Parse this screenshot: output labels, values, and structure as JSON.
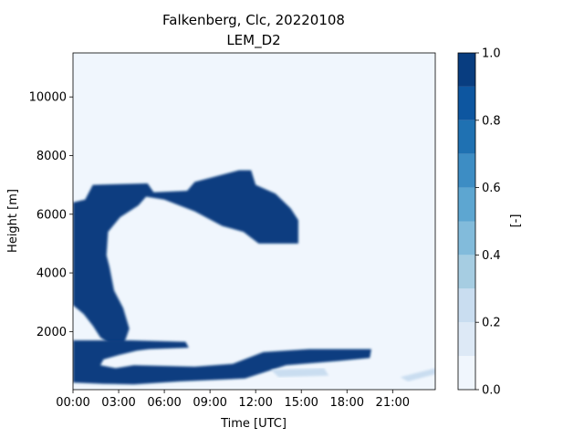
{
  "chart_data": {
    "type": "heatmap",
    "title": "Falkenberg, Clc, 20220108",
    "subtitle": "LEM_D2",
    "xlabel": "Time [UTC]",
    "ylabel": "Height [m]",
    "colorbar_label": "[-]",
    "x_ticks": [
      "00:00",
      "03:00",
      "06:00",
      "09:00",
      "12:00",
      "15:00",
      "18:00",
      "21:00"
    ],
    "x_tick_hours": [
      0,
      3,
      6,
      9,
      12,
      15,
      18,
      21
    ],
    "xlim_hours": [
      0,
      23.8
    ],
    "y_ticks": [
      "2000",
      "4000",
      "6000",
      "8000",
      "10000"
    ],
    "y_tick_values": [
      2000,
      4000,
      6000,
      8000,
      10000
    ],
    "ylim": [
      20,
      11500
    ],
    "colorbar_ticks": [
      "0.0",
      "0.2",
      "0.4",
      "0.6",
      "0.8",
      "1.0"
    ],
    "colorbar_tick_values": [
      0,
      0.2,
      0.4,
      0.6,
      0.8,
      1.0
    ],
    "levels": [
      0,
      0.1,
      0.2,
      0.3,
      0.4,
      0.5,
      0.6,
      0.7,
      0.8,
      0.9,
      1.0
    ],
    "colors": [
      "#f0f6fd",
      "#dde9f6",
      "#c9ddf0",
      "#a6cde2",
      "#82bbdb",
      "#5da6d1",
      "#3d8dc4",
      "#1f71b2",
      "#0d56a0",
      "#083d80"
    ],
    "cloud_regions": [
      {
        "name": "upper-cloud-arc",
        "value": 1.0,
        "points_hours_m": [
          [
            0,
            6400
          ],
          [
            0.8,
            6500
          ],
          [
            1.3,
            7000
          ],
          [
            4.9,
            7050
          ],
          [
            5.3,
            6750
          ],
          [
            7.5,
            6800
          ],
          [
            8.0,
            7100
          ],
          [
            10.9,
            7500
          ],
          [
            11.7,
            7500
          ],
          [
            12.0,
            7000
          ],
          [
            13.3,
            6700
          ],
          [
            14.3,
            6200
          ],
          [
            14.8,
            5800
          ],
          [
            14.8,
            5000
          ],
          [
            12.2,
            5000
          ],
          [
            11.2,
            5400
          ],
          [
            9.8,
            5600
          ],
          [
            8.0,
            6100
          ],
          [
            6.0,
            6500
          ],
          [
            4.8,
            6600
          ],
          [
            4.3,
            6300
          ],
          [
            3.1,
            5900
          ],
          [
            2.3,
            5400
          ],
          [
            2.2,
            4600
          ],
          [
            2.4,
            4200
          ],
          [
            2.7,
            3400
          ],
          [
            3.3,
            2800
          ],
          [
            3.7,
            2100
          ],
          [
            3.3,
            1500
          ],
          [
            2.9,
            1400
          ],
          [
            1.8,
            1800
          ],
          [
            1.3,
            2200
          ],
          [
            0.7,
            2600
          ],
          [
            0,
            2900
          ]
        ]
      },
      {
        "name": "lower-cloud-band",
        "value": 1.0,
        "points_hours_m": [
          [
            0,
            1700
          ],
          [
            3.8,
            1700
          ],
          [
            7.4,
            1650
          ],
          [
            7.6,
            1450
          ],
          [
            5.0,
            1400
          ],
          [
            4.2,
            1350
          ],
          [
            3.0,
            1200
          ],
          [
            2.0,
            1050
          ],
          [
            1.8,
            850
          ],
          [
            2.8,
            750
          ],
          [
            4.0,
            850
          ],
          [
            8.0,
            800
          ],
          [
            10.5,
            900
          ],
          [
            12.5,
            1300
          ],
          [
            15.5,
            1400
          ],
          [
            19.6,
            1400
          ],
          [
            19.5,
            1100
          ],
          [
            17.5,
            1000
          ],
          [
            14.0,
            850
          ],
          [
            11.3,
            400
          ],
          [
            7.0,
            300
          ],
          [
            4.0,
            200
          ],
          [
            2.0,
            220
          ],
          [
            0,
            260
          ]
        ]
      },
      {
        "name": "faint-low-cloud",
        "value": 0.2,
        "points_hours_m": [
          [
            13.0,
            700
          ],
          [
            16.5,
            750
          ],
          [
            16.8,
            500
          ],
          [
            13.5,
            450
          ]
        ]
      },
      {
        "name": "faint-low-cloud-right",
        "value": 0.2,
        "points_hours_m": [
          [
            21.5,
            450
          ],
          [
            23.8,
            750
          ],
          [
            23.8,
            550
          ],
          [
            22.0,
            300
          ]
        ]
      }
    ],
    "background_value": 0.0
  }
}
